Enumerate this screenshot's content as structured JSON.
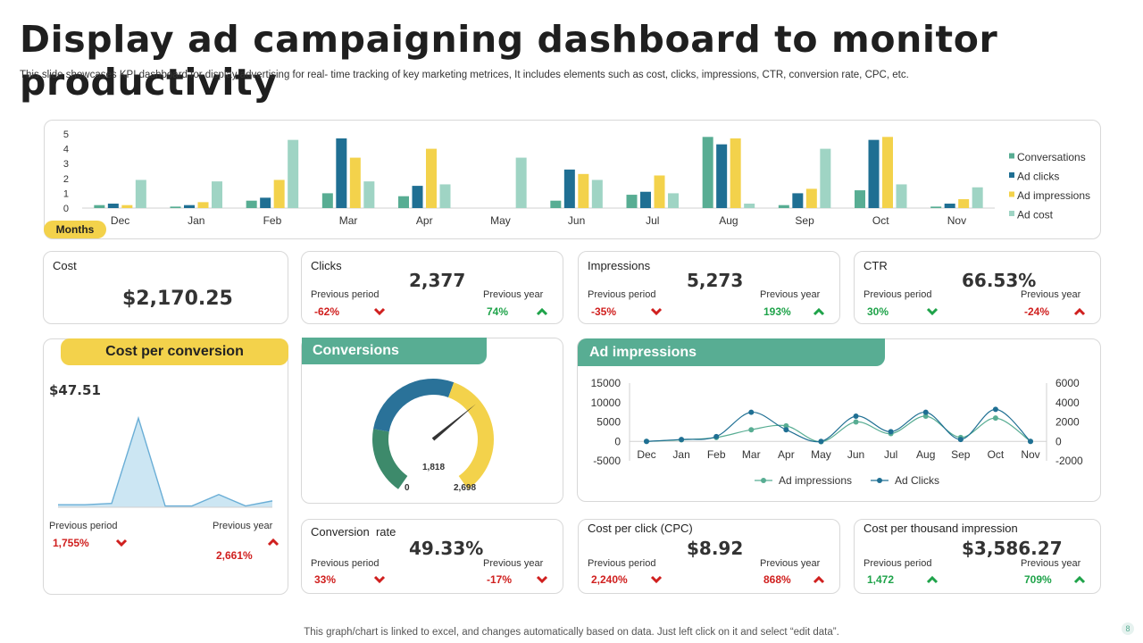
{
  "header": {
    "title": "Display ad campaigning dashboard to monitor productivity",
    "subtitle": "This slide showcases KPI dashboard for display advertising for real- time tracking of key marketing metrices, It includes elements such as cost, clicks, impressions, CTR, conversion rate, CPC, etc."
  },
  "colors": {
    "conversations": "#58ad93",
    "ad_clicks": "#1f6f93",
    "ad_impressions": "#f3d24b",
    "ad_cost": "#9fd4c4",
    "negative": "#d0201f",
    "positive": "#1fa34a"
  },
  "months_badge": "Months",
  "kpis": {
    "cost": {
      "label": "Cost",
      "value": "$2,170.25"
    },
    "clicks": {
      "label": "Clicks",
      "value": "2,377",
      "prev_period_label": "Previous period",
      "prev_period": "-62%",
      "prev_year_label": "Previous year",
      "prev_year": "74%"
    },
    "impressions": {
      "label": "Impressions",
      "value": "5,273",
      "prev_period_label": "Previous period",
      "prev_period": "-35%",
      "prev_year_label": "Previous year",
      "prev_year": "193%"
    },
    "ctr": {
      "label": "CTR",
      "value": "66.53%",
      "prev_period_label": "Previous period",
      "prev_period": "30%",
      "prev_year_label": "Previous year",
      "prev_year": "-24%"
    },
    "conversion_rate": {
      "label": "Conversion  rate",
      "value": "49.33%",
      "prev_period_label": "Previous period",
      "prev_period": "33%",
      "prev_year_label": "Previous year",
      "prev_year": "-17%"
    },
    "cpc": {
      "label": "Cost per click (CPC)",
      "value": "$8.92",
      "prev_period_label": "Previous period",
      "prev_period": "2,240%",
      "prev_year_label": "Previous year",
      "prev_year": "868%"
    },
    "cpm": {
      "label": "Cost per thousand impression",
      "value": "$3,586.27",
      "prev_period_label": "Previous period",
      "prev_period": "1,472",
      "prev_year_label": "Previous year",
      "prev_year": "709%"
    }
  },
  "cost_per_conversion": {
    "title": "Cost per conversion",
    "value": "$47.51",
    "prev_period_label": "Previous period",
    "prev_period": "1,755%",
    "prev_year_label": "Previous year",
    "prev_year": "2,661%"
  },
  "conversions": {
    "title": "Conversions",
    "min_label": "0",
    "max_label": "2,698",
    "value_label": "1,818"
  },
  "ad_impressions_panel": {
    "title": "Ad impressions"
  },
  "footer": "This graph/chart is linked to excel,  and changes automatically based on data. Just left click on it and select “edit data”.",
  "page_number": "8",
  "chart_data": [
    {
      "type": "bar",
      "title": "",
      "categories": [
        "Dec",
        "Jan",
        "Feb",
        "Mar",
        "Apr",
        "May",
        "Jun",
        "Jul",
        "Aug",
        "Sep",
        "Oct",
        "Nov"
      ],
      "series": [
        {
          "name": "Conversations",
          "values": [
            0.2,
            0.1,
            0.5,
            1.0,
            0.8,
            0.0,
            0.5,
            0.9,
            4.8,
            0.2,
            1.2,
            0.1
          ]
        },
        {
          "name": "Ad clicks",
          "values": [
            0.3,
            0.2,
            0.7,
            4.7,
            1.5,
            0.0,
            2.6,
            1.1,
            4.3,
            1.0,
            4.6,
            0.3
          ]
        },
        {
          "name": "Ad impressions",
          "values": [
            0.2,
            0.4,
            1.9,
            3.4,
            4.0,
            0.0,
            2.3,
            2.2,
            4.7,
            1.3,
            4.8,
            0.6
          ]
        },
        {
          "name": "Ad cost",
          "values": [
            1.9,
            1.8,
            4.6,
            1.8,
            1.6,
            3.4,
            1.9,
            1.0,
            0.3,
            4.0,
            1.6,
            1.4
          ]
        }
      ],
      "yticks": [
        0,
        1,
        2,
        3,
        4,
        5
      ],
      "ylim": [
        0,
        5
      ],
      "legend": "right"
    },
    {
      "type": "area",
      "title": "Cost per conversion",
      "values": [
        0.2,
        0.2,
        0.3,
        7.0,
        0.1,
        0.1,
        1.0,
        0.1,
        0.5
      ],
      "ylim": [
        0,
        8
      ]
    },
    {
      "type": "line",
      "title": "Ad impressions",
      "categories": [
        "Dec",
        "Jan",
        "Feb",
        "Mar",
        "Apr",
        "May",
        "Jun",
        "Jul",
        "Aug",
        "Sep",
        "Oct",
        "Nov"
      ],
      "series": [
        {
          "name": "Ad impressions",
          "axis": "left",
          "values": [
            0,
            400,
            1000,
            3000,
            4000,
            -100,
            5000,
            2000,
            6500,
            1000,
            6000,
            0
          ]
        },
        {
          "name": "Ad Clicks",
          "axis": "right",
          "values": [
            0,
            200,
            500,
            3000,
            1200,
            0,
            2600,
            1000,
            3000,
            200,
            3300,
            0
          ]
        }
      ],
      "left_ticks": [
        -5000,
        0,
        5000,
        10000,
        15000
      ],
      "right_ticks": [
        -2000,
        0,
        2000,
        4000,
        6000
      ],
      "legend": "bottom"
    },
    {
      "type": "gauge",
      "title": "Conversions",
      "min": 0,
      "max": 2698,
      "value": 1818
    }
  ]
}
